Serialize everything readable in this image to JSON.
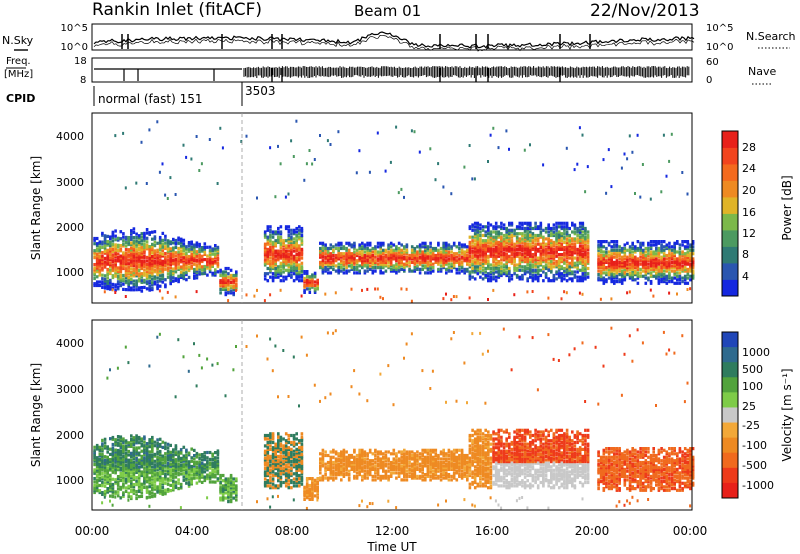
{
  "header": {
    "station": "Rankin Inlet (fitACF)",
    "beam": "Beam 01",
    "date": "22/Nov/2013"
  },
  "chart_data": [
    {
      "type": "line",
      "panel": "noise",
      "left_label": "N.Sky",
      "right_label": "N.Search",
      "left_ticks": [
        "10^5",
        "10^0"
      ],
      "right_ticks": [
        "10^5",
        "10^0"
      ],
      "y_scale": "log",
      "ylim": [
        1,
        100000
      ]
    },
    {
      "type": "line",
      "panel": "frequency",
      "left_label_top": "Freq.",
      "left_label_bottom": "[MHz]",
      "right_label": "Nave",
      "left_ticks": [
        "18",
        "8"
      ],
      "right_ticks": [
        "60",
        "0"
      ],
      "ylim_left": [
        8,
        18
      ],
      "ylim_right": [
        0,
        60
      ]
    },
    {
      "type": "table",
      "panel": "cpid",
      "label": "CPID",
      "segments": [
        {
          "start_hour": 0,
          "text": "normal (fast) 151"
        },
        {
          "start_hour": 6,
          "text": "3503"
        }
      ]
    },
    {
      "type": "heatmap",
      "panel": "power",
      "ylabel": "Slant Range [km]",
      "yticks": [
        "1000",
        "2000",
        "3000",
        "4000"
      ],
      "ylim": [
        180,
        4550
      ],
      "xlim": [
        0,
        24
      ],
      "colorbar_title": "Power [dB]",
      "colorbar_ticks": [
        "4",
        "8",
        "12",
        "16",
        "20",
        "24",
        "28"
      ],
      "colorbar_colors": [
        "#1528e0",
        "#2a56b0",
        "#2f7a74",
        "#4c9a60",
        "#7cb84a",
        "#e0b428",
        "#ee8a22",
        "#f46a1e",
        "#f2441e",
        "#e8201a"
      ]
    },
    {
      "type": "heatmap",
      "panel": "velocity",
      "ylabel": "Slant Range [km]",
      "yticks": [
        "1000",
        "2000",
        "3000",
        "4000"
      ],
      "ylim": [
        180,
        4550
      ],
      "xlim": [
        0,
        24
      ],
      "xlabel": "Time UT",
      "xticks": [
        "00:00",
        "04:00",
        "08:00",
        "12:00",
        "16:00",
        "20:00",
        "00:00"
      ],
      "colorbar_title": "Velocity [m s⁻¹]",
      "colorbar_ticks": [
        "1000",
        "500",
        "100",
        "25",
        "-25",
        "-100",
        "-500",
        "-1000"
      ],
      "colorbar_colors": [
        "#2046b8",
        "#2f6a8e",
        "#2f7c5e",
        "#52a33c",
        "#7ecc48",
        "#c8c8c8",
        "#f2a838",
        "#ee8a22",
        "#f06a1e",
        "#ee3a1a",
        "#e8201a"
      ]
    }
  ]
}
